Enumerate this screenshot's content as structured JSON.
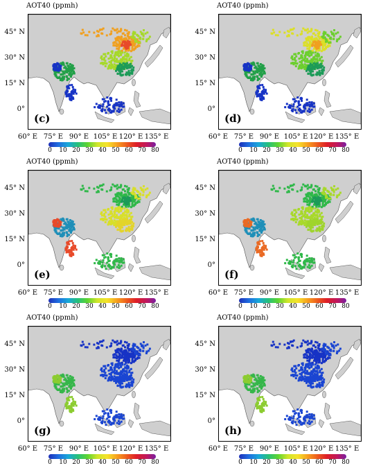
{
  "panels": [
    {
      "id": "c",
      "letter": "(c)",
      "title": "AOT40 (ppmh)",
      "colors": {
        "north": "#f0a020",
        "hot": "#e84a2a",
        "east": "#a6d92a",
        "south": "#1c9b58",
        "india": "#22a048",
        "west": "#1733c5",
        "se": "#1733c5"
      }
    },
    {
      "id": "d",
      "letter": "(d)",
      "title": "AOT40 (ppmh)",
      "colors": {
        "north": "#dbdf28",
        "hot": "#f0a020",
        "east": "#6ccf2e",
        "south": "#1c9b58",
        "india": "#22a048",
        "west": "#1733c5",
        "se": "#1733c5"
      }
    },
    {
      "id": "e",
      "letter": "(e)",
      "title": "AOT40 (ppmh)",
      "colors": {
        "north": "#2fb849",
        "hot": "#1c9b58",
        "east": "#d8df2a",
        "south": "#e3d42a",
        "india": "#1f8fb8",
        "west": "#e84a2a",
        "se": "#2fb849"
      }
    },
    {
      "id": "f",
      "letter": "(f)",
      "title": "AOT40 (ppmh)",
      "colors": {
        "north": "#2fb849",
        "hot": "#1c9b58",
        "east": "#a8d92a",
        "south": "#9fd42c",
        "india": "#1f8fb8",
        "west": "#ea6a24",
        "se": "#2fb849"
      }
    },
    {
      "id": "g",
      "letter": "(g)",
      "title": "AOT40 (ppmh)",
      "colors": {
        "north": "#1733c5",
        "hot": "#1733c5",
        "east": "#1a45d2",
        "south": "#1a45d2",
        "india": "#36b64a",
        "west": "#8ccc30",
        "se": "#1a45d2"
      }
    },
    {
      "id": "h",
      "letter": "(h)",
      "title": "AOT40 (ppmh)",
      "colors": {
        "north": "#1733c5",
        "hot": "#1733c5",
        "east": "#1a45d2",
        "south": "#1a45d2",
        "india": "#36b64a",
        "west": "#8ccc30",
        "se": "#1a45d2"
      }
    }
  ],
  "lat_labels": [
    "45° N",
    "30° N",
    "15° N",
    "0°"
  ],
  "lon_labels": [
    "60° E",
    "75° E",
    "90° E",
    "105° E",
    "120° E",
    "135° E"
  ],
  "colorbar_ticks": [
    "0",
    "10",
    "20",
    "30",
    "40",
    "50",
    "60",
    "70",
    "80"
  ],
  "colorbar_colors": [
    "#1e2fb8",
    "#19a7d8",
    "#5ed531",
    "#f5e32b",
    "#ee5d1d",
    "#c2185b",
    "#7a1fa2"
  ]
}
